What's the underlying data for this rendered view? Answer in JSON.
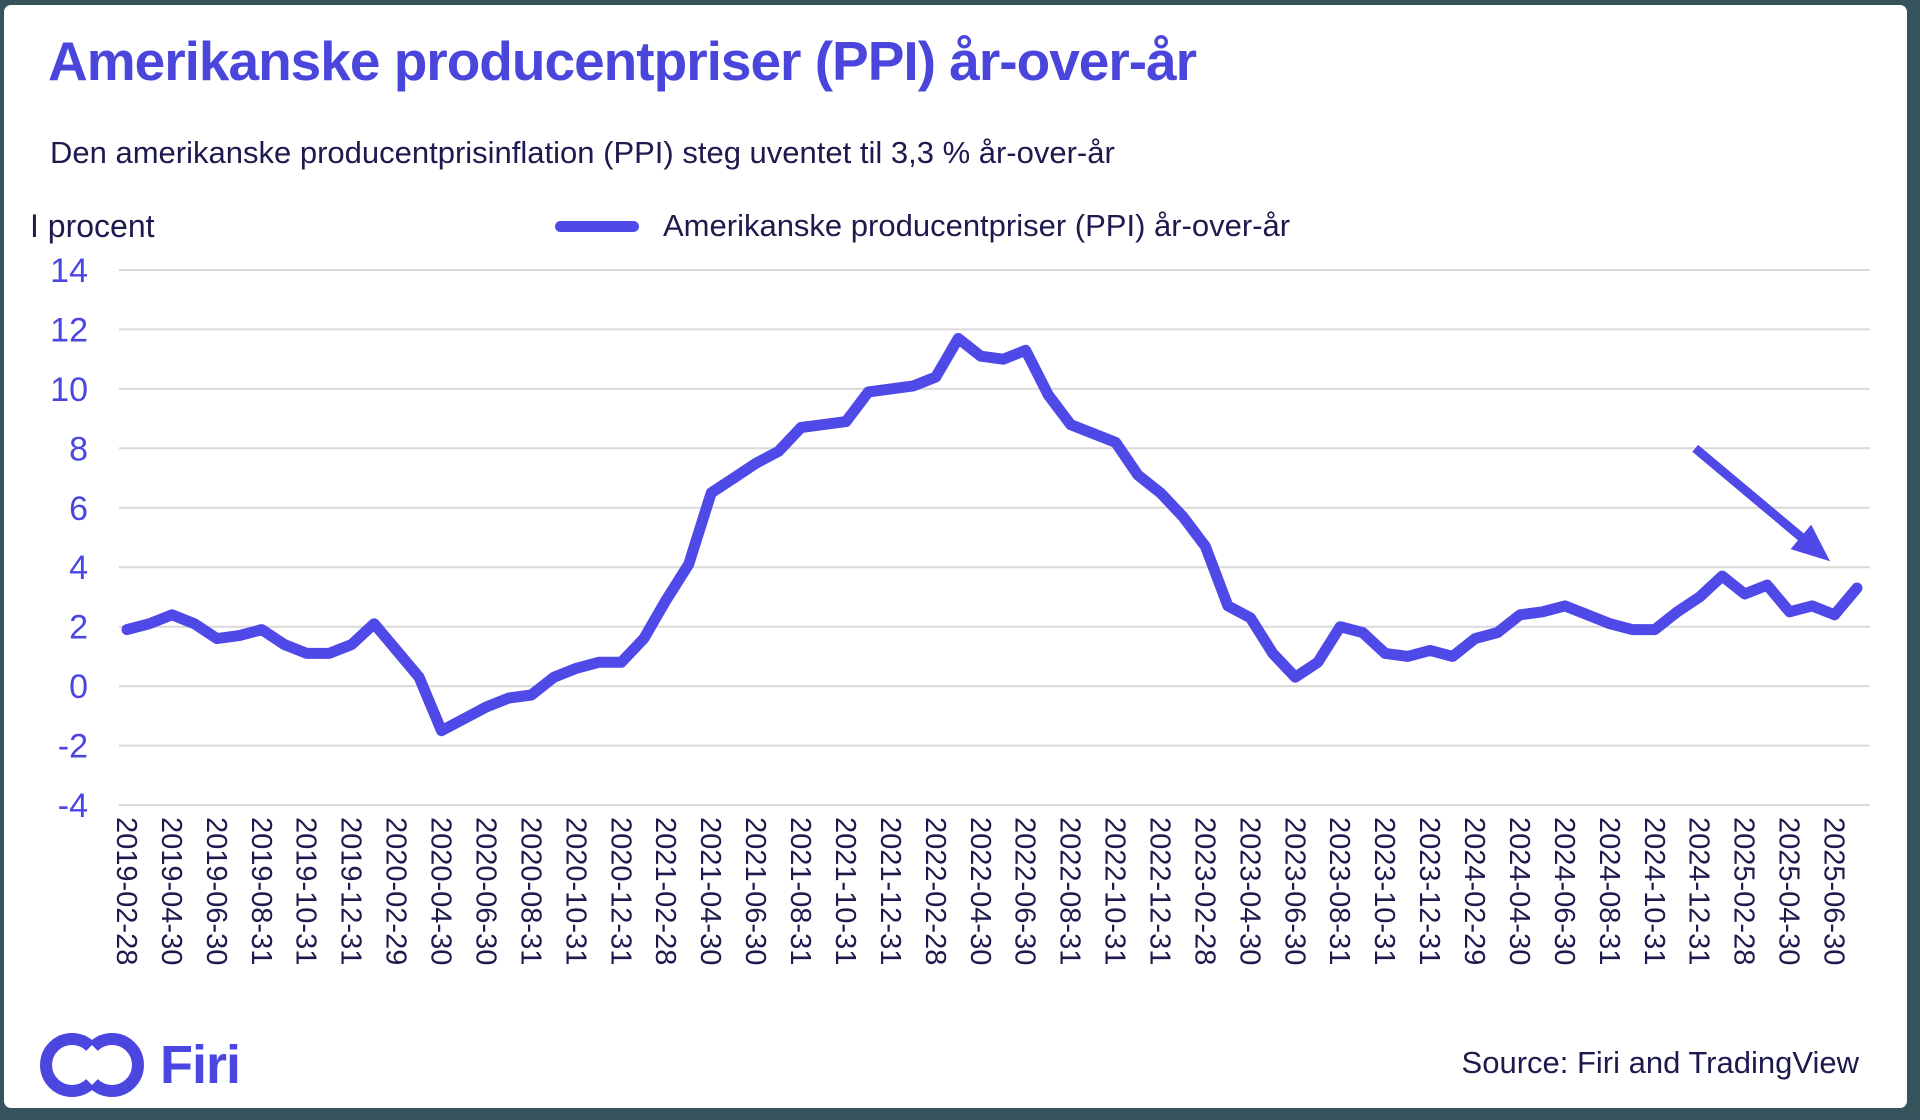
{
  "header": {
    "title": "Amerikanske producentpriser (PPI) år-over-år",
    "subtitle": "Den amerikanske producentprisinflation (PPI) steg uventet til 3,3 % år-over-år"
  },
  "legend": {
    "label": "Amerikanske producentpriser (PPI) år-over-år"
  },
  "footer": {
    "logo_text": "Firi",
    "source": "Source: Firi and TradingView"
  },
  "colors": {
    "accent_title": "#4A45DB",
    "line": "#4F49E8",
    "axis_tick_blue": "#4B46E2",
    "dark_navy": "#1D1A4E",
    "gridline": "#D9D9D9",
    "frame": "#36525B",
    "card_background": "#FFFFFF"
  },
  "chart_data": {
    "type": "line",
    "title": "Amerikanske producentpriser (PPI) år-over-år",
    "xlabel": "",
    "ylabel": "I procent",
    "ylim": [
      -4,
      14
    ],
    "ytick_step": 2,
    "yticks": [
      14,
      12,
      10,
      8,
      6,
      4,
      2,
      0,
      -2,
      -4
    ],
    "grid": "horizontal",
    "legend_position": "top-center",
    "xtick_every": 2,
    "x": [
      "2019-02-28",
      "2019-03-31",
      "2019-04-30",
      "2019-05-31",
      "2019-06-30",
      "2019-07-31",
      "2019-08-31",
      "2019-09-30",
      "2019-10-31",
      "2019-11-30",
      "2019-12-31",
      "2020-01-31",
      "2020-02-29",
      "2020-03-31",
      "2020-04-30",
      "2020-05-31",
      "2020-06-30",
      "2020-07-31",
      "2020-08-31",
      "2020-09-30",
      "2020-10-31",
      "2020-11-30",
      "2020-12-31",
      "2021-01-31",
      "2021-02-28",
      "2021-03-31",
      "2021-04-30",
      "2021-05-31",
      "2021-06-30",
      "2021-07-31",
      "2021-08-31",
      "2021-09-30",
      "2021-10-31",
      "2021-11-30",
      "2021-12-31",
      "2022-01-31",
      "2022-02-28",
      "2022-03-31",
      "2022-04-30",
      "2022-05-31",
      "2022-06-30",
      "2022-07-31",
      "2022-08-31",
      "2022-09-30",
      "2022-10-31",
      "2022-11-30",
      "2022-12-31",
      "2023-01-31",
      "2023-02-28",
      "2023-03-31",
      "2023-04-30",
      "2023-05-31",
      "2023-06-30",
      "2023-07-31",
      "2023-08-31",
      "2023-09-30",
      "2023-10-31",
      "2023-11-30",
      "2023-12-31",
      "2024-01-31",
      "2024-02-29",
      "2024-03-31",
      "2024-04-30",
      "2024-05-31",
      "2024-06-30",
      "2024-07-31",
      "2024-08-31",
      "2024-09-30",
      "2024-10-31",
      "2024-11-30",
      "2024-12-31",
      "2025-01-31",
      "2025-02-28",
      "2025-03-31",
      "2025-04-30",
      "2025-05-31",
      "2025-06-30",
      "2025-07-31"
    ],
    "values": [
      1.9,
      2.1,
      2.4,
      2.1,
      1.6,
      1.7,
      1.9,
      1.4,
      1.1,
      1.1,
      1.4,
      2.1,
      1.2,
      0.3,
      -1.5,
      -1.1,
      -0.7,
      -0.4,
      -0.3,
      0.3,
      0.6,
      0.8,
      0.8,
      1.6,
      2.9,
      4.1,
      6.5,
      7.0,
      7.5,
      7.9,
      8.7,
      8.8,
      8.9,
      9.9,
      10.0,
      10.1,
      10.4,
      11.7,
      11.1,
      11.0,
      11.3,
      9.8,
      8.8,
      8.5,
      8.2,
      7.1,
      6.5,
      5.7,
      4.7,
      2.7,
      2.3,
      1.1,
      0.3,
      0.8,
      2.0,
      1.8,
      1.1,
      1.0,
      1.2,
      1.0,
      1.6,
      1.8,
      2.4,
      2.5,
      2.7,
      2.4,
      2.1,
      1.9,
      1.9,
      2.5,
      3.0,
      3.7,
      3.1,
      3.4,
      2.5,
      2.7,
      2.4,
      3.3
    ],
    "series_name": "Amerikanske producentpriser (PPI) år-over-år",
    "annotation_arrow": {
      "from_index": 69.8,
      "from_value": 8.0,
      "to_index": 75.8,
      "to_value": 4.2
    }
  }
}
